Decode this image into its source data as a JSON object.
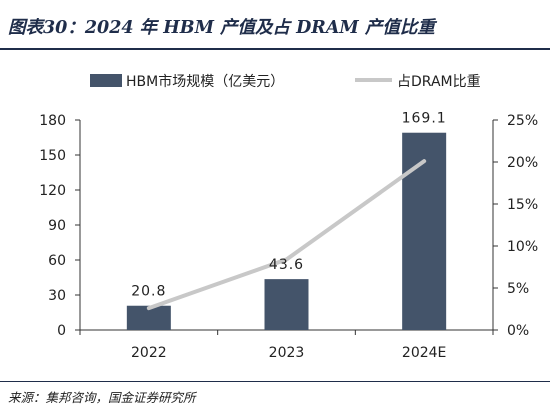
{
  "figure_title": "图表30：2024 年 HBM 产值及占 DRAM 产值比重",
  "source": "来源：集邦咨询，国金证券研究所",
  "colors": {
    "bar": "#44546a",
    "line": "#c8c8c8",
    "title": "#1f2d4a"
  },
  "chart_data": {
    "type": "bar",
    "categories": [
      "2022",
      "2023",
      "2024E"
    ],
    "series": [
      {
        "name": "HBM市场规模（亿美元）",
        "type": "bar",
        "axis": "left",
        "values": [
          20.8,
          43.6,
          169.1
        ],
        "data_labels": [
          "20.8",
          "43.6",
          "169.1"
        ]
      },
      {
        "name": "占DRAM比重",
        "type": "line",
        "axis": "right",
        "values": [
          2.6,
          8.4,
          20.1
        ]
      }
    ],
    "ylim_left": [
      0,
      180
    ],
    "yticks_left": [
      "0",
      "30",
      "60",
      "90",
      "120",
      "150",
      "180"
    ],
    "ylim_right": [
      0,
      25
    ],
    "yticks_right": [
      "0%",
      "5%",
      "10%",
      "15%",
      "20%",
      "25%"
    ],
    "legend": "top",
    "grid": false
  }
}
